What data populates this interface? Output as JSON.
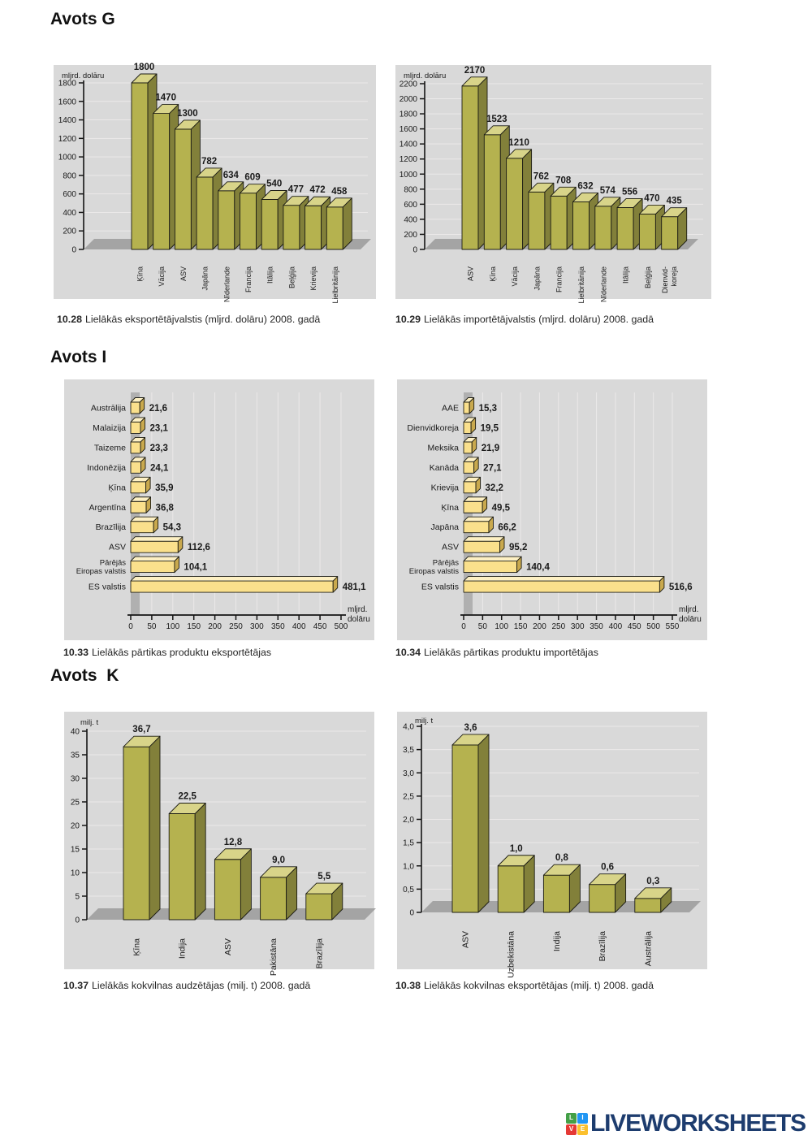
{
  "headings": {
    "g": "Avots G",
    "i": "Avots I",
    "k": "Avots  K"
  },
  "colors": {
    "panel_bg": "#d9d9d9",
    "grid_line": "#ebe9e9",
    "floor_gray": "#a4a4a4",
    "wall_gray": "#b0b0b0",
    "axis_black": "#141414",
    "olive_front": "#b5b24f",
    "olive_side": "#82803a",
    "olive_top": "#d8d489",
    "yellow_front": "#fae08c",
    "yellow_side": "#c9a94e",
    "yellow_top": "#fdf0c3",
    "bar_outline": "#1c1c14",
    "label_dark": "#1a1a1a",
    "brand_navy": "#1d3c6e"
  },
  "chart_data": [
    {
      "id": "10.28",
      "type": "bar",
      "orientation": "vertical",
      "style": "3d",
      "unit_label": "mljrd. dolāru",
      "categories": [
        "Ķīna",
        "Vācija",
        "ASV",
        "Japāna",
        "Nīderlande",
        "Francija",
        "Itālija",
        "Beļģija",
        "Krievija",
        "Lielbritānija"
      ],
      "values": [
        1800,
        1470,
        1300,
        782,
        634,
        609,
        540,
        477,
        472,
        458
      ],
      "value_labels": [
        "1800",
        "1470",
        "1300",
        "782",
        "634",
        "609",
        "540",
        "477",
        "472",
        "458"
      ],
      "ylim": [
        0,
        1800
      ],
      "ytick_step": 200,
      "ytick_labels": [
        "0",
        "200",
        "400",
        "600",
        "800",
        "1000",
        "1200",
        "1400",
        "1600",
        "1800"
      ],
      "grid": true,
      "caption_number": "10.28",
      "caption": "Lielākās eksportētājvalstis (mljrd. dolāru) 2008. gadā"
    },
    {
      "id": "10.29",
      "type": "bar",
      "orientation": "vertical",
      "style": "3d",
      "unit_label": "mljrd. dolāru",
      "categories": [
        "ASV",
        "Ķīna",
        "Vācija",
        "Japāna",
        "Francija",
        "Lielbritānija",
        "Nīderlande",
        "Itālija",
        "Beļģija",
        "Dienvid-\nkoreja"
      ],
      "values": [
        2170,
        1523,
        1210,
        762,
        708,
        632,
        574,
        556,
        470,
        435
      ],
      "value_labels": [
        "2170",
        "1523",
        "1210",
        "762",
        "708",
        "632",
        "574",
        "556",
        "470",
        "435"
      ],
      "ylim": [
        0,
        2200
      ],
      "ytick_step": 200,
      "ytick_labels": [
        "0",
        "200",
        "400",
        "600",
        "800",
        "1000",
        "1200",
        "1400",
        "1600",
        "1800",
        "2000",
        "2200"
      ],
      "grid": true,
      "caption_number": "10.29",
      "caption": "Lielākās importētājvalstis (mljrd. dolāru) 2008. gadā"
    },
    {
      "id": "10.33",
      "type": "bar",
      "orientation": "horizontal",
      "style": "3d",
      "unit_label": "mljrd.\ndolāru",
      "categories": [
        "Austrālija",
        "Malaizija",
        "Taizeme",
        "Indonēzija",
        "Ķīna",
        "Argentīna",
        "Brazīlija",
        "ASV",
        "Pārējās\nEiropas valstis",
        "ES valstis"
      ],
      "values": [
        21.6,
        23.1,
        23.3,
        24.1,
        35.9,
        36.8,
        54.3,
        112.6,
        104.1,
        481.1
      ],
      "value_labels": [
        "21,6",
        "23,1",
        "23,3",
        "24,1",
        "35,9",
        "36,8",
        "54,3",
        "112,6",
        "104,1",
        "481,1"
      ],
      "xlim": [
        0,
        500
      ],
      "xtick_step": 50,
      "xtick_labels": [
        "0",
        "50",
        "100",
        "150",
        "200",
        "250",
        "300",
        "350",
        "400",
        "450",
        "500"
      ],
      "grid": true,
      "caption_number": "10.33",
      "caption": "Lielākās pārtikas produktu eksportētājas"
    },
    {
      "id": "10.34",
      "type": "bar",
      "orientation": "horizontal",
      "style": "3d",
      "unit_label": "mljrd.\ndolāru",
      "categories": [
        "AAE",
        "Dienvidkoreja",
        "Meksika",
        "Kanāda",
        "Krievija",
        "Ķīna",
        "Japāna",
        "ASV",
        "Pārējās\nEiropas valstis",
        "ES valstis"
      ],
      "values": [
        15.3,
        19.5,
        21.9,
        27.1,
        32.2,
        49.5,
        66.2,
        95.2,
        140.4,
        516.6
      ],
      "value_labels": [
        "15,3",
        "19,5",
        "21,9",
        "27,1",
        "32,2",
        "49,5",
        "66,2",
        "95,2",
        "140,4",
        "516,6"
      ],
      "xlim": [
        0,
        550
      ],
      "xtick_step": 50,
      "xtick_labels": [
        "0",
        "50",
        "100",
        "150",
        "200",
        "250",
        "300",
        "350",
        "400",
        "450",
        "500",
        "550"
      ],
      "grid": true,
      "caption_number": "10.34",
      "caption": "Lielākās pārtikas produktu importētājas"
    },
    {
      "id": "10.37",
      "type": "bar",
      "orientation": "vertical",
      "style": "3d",
      "unit_label": "milj. t",
      "categories": [
        "Ķīna",
        "Indija",
        "ASV",
        "Pakistāna",
        "Brazīlija"
      ],
      "values": [
        36.7,
        22.5,
        12.8,
        9.0,
        5.5
      ],
      "value_labels": [
        "36,7",
        "22,5",
        "12,8",
        "9,0",
        "5,5"
      ],
      "ylim": [
        0,
        40
      ],
      "ytick_step": 5,
      "ytick_labels": [
        "0",
        "5",
        "10",
        "15",
        "20",
        "25",
        "30",
        "35",
        "40"
      ],
      "grid": true,
      "caption_number": "10.37",
      "caption": "Lielākās kokvilnas audzētājas (milj. t) 2008. gadā"
    },
    {
      "id": "10.38",
      "type": "bar",
      "orientation": "vertical",
      "style": "3d",
      "unit_label": "milj. t",
      "categories": [
        "ASV",
        "Uzbekistāna",
        "Indija",
        "Brazīlija",
        "Austrālija"
      ],
      "values": [
        3.6,
        1.0,
        0.8,
        0.6,
        0.3
      ],
      "value_labels": [
        "3,6",
        "1,0",
        "0,8",
        "0,6",
        "0,3"
      ],
      "ylim": [
        0,
        4
      ],
      "ytick_step": 0.5,
      "ytick_labels": [
        "0",
        "0,5",
        "1,0",
        "1,5",
        "2,0",
        "2,5",
        "3,0",
        "3,5",
        "4,0"
      ],
      "grid": true,
      "caption_number": "10.38",
      "caption": "Lielākās kokvilnas eksportētājas (milj. t) 2008. gadā"
    }
  ],
  "footer": {
    "brand": "LIVEWORKSHEETS",
    "tiles": [
      {
        "letter": "L",
        "color": "#43a047"
      },
      {
        "letter": "I",
        "color": "#2196f3"
      },
      {
        "letter": "V",
        "color": "#e53935"
      },
      {
        "letter": "E",
        "color": "#fbc02d"
      }
    ]
  }
}
